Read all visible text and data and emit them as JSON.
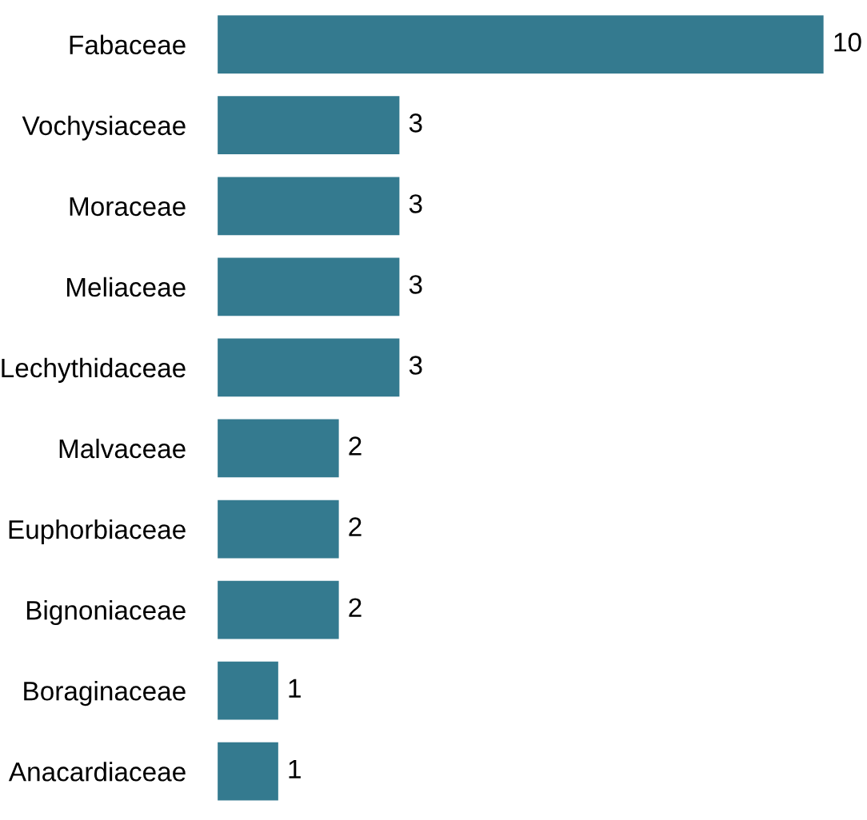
{
  "chart_data": {
    "type": "bar",
    "orientation": "horizontal",
    "categories": [
      "Fabaceae",
      "Vochysiaceae",
      "Moraceae",
      "Meliaceae",
      "Lechythidaceae",
      "Malvaceae",
      "Euphorbiaceae",
      "Bignoniaceae",
      "Boraginaceae",
      "Anacardiaceae"
    ],
    "values": [
      10,
      3,
      3,
      3,
      3,
      2,
      2,
      2,
      1,
      1
    ],
    "color": "#347a8f",
    "data_labels": true,
    "grid": false,
    "legend": false
  }
}
